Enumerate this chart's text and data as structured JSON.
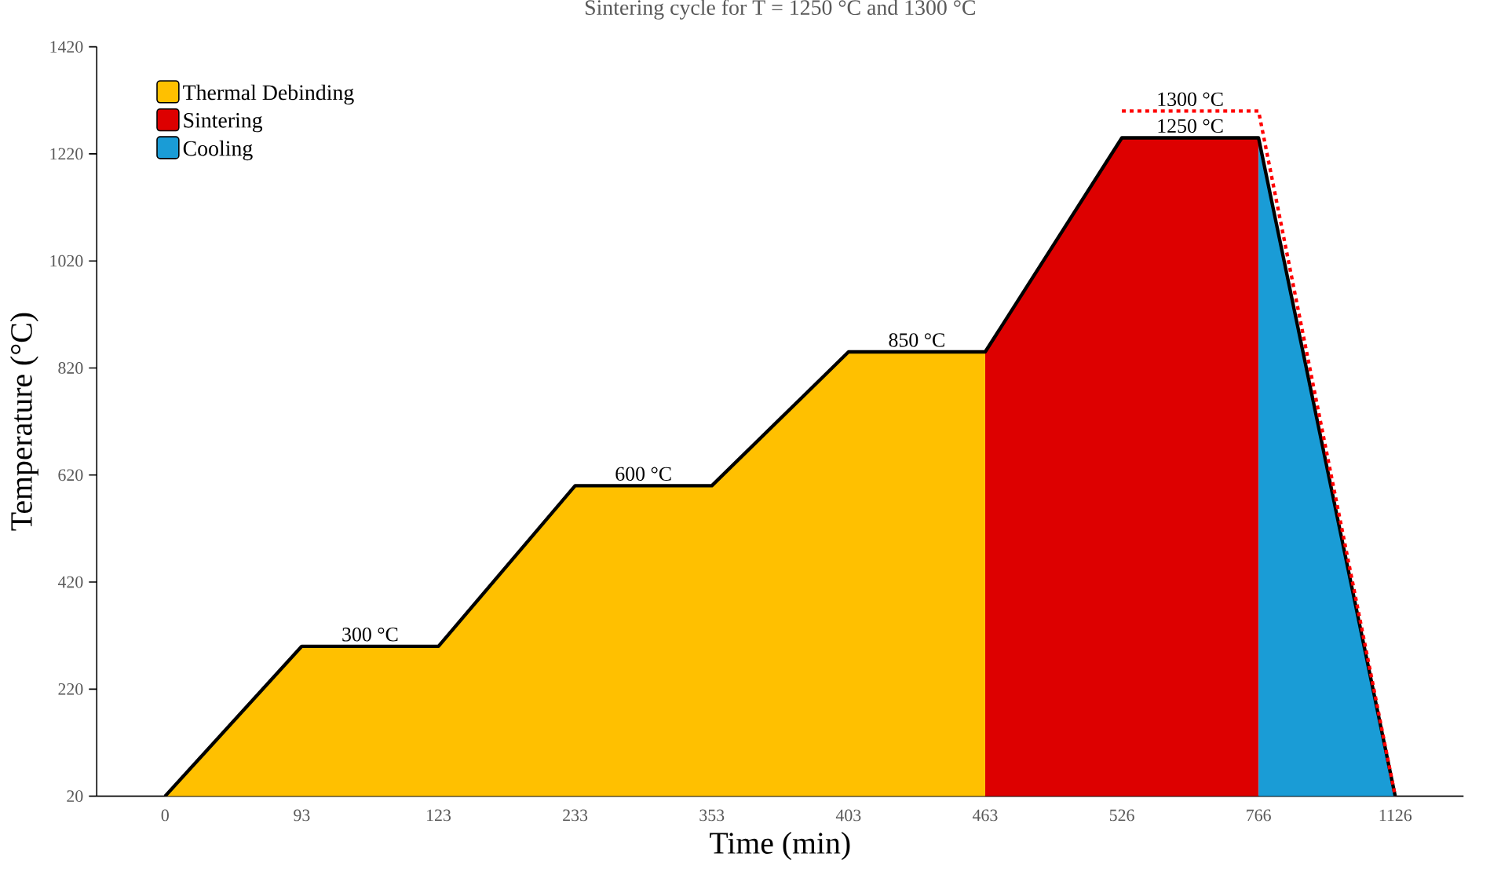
{
  "chart_data": {
    "type": "area",
    "title": "Sintering cycle for T = 1250 °C and 1300 °C",
    "xlabel": "Time (min)",
    "ylabel": "Temperature (°C)",
    "categories": [
      "0",
      "93",
      "123",
      "233",
      "353",
      "403",
      "463",
      "526",
      "766",
      "1126"
    ],
    "ylim": [
      20,
      1420
    ],
    "yticks": [
      20,
      220,
      420,
      620,
      820,
      1020,
      1220,
      1420
    ],
    "series": [
      {
        "name": "Thermal Debinding",
        "color": "#ffc000",
        "values": [
          20,
          300,
          300,
          600,
          600,
          850,
          850,
          null,
          null,
          null
        ]
      },
      {
        "name": "Sintering",
        "color": "#dd0000",
        "values": [
          null,
          null,
          null,
          null,
          null,
          null,
          850,
          1250,
          1250,
          null
        ]
      },
      {
        "name": "Cooling",
        "color": "#1a9cd6",
        "values": [
          null,
          null,
          null,
          null,
          null,
          null,
          null,
          null,
          1250,
          20
        ]
      },
      {
        "type": "line",
        "color": "#000000",
        "values": [
          20,
          300,
          300,
          600,
          600,
          850,
          850,
          1250,
          1250,
          20
        ]
      },
      {
        "type": "line",
        "color": "#ff0000",
        "line_style": "dotted",
        "values": [
          null,
          null,
          null,
          null,
          null,
          null,
          null,
          1300,
          1300,
          20
        ]
      }
    ],
    "annotations": [
      {
        "text": "300 °C",
        "x": "93",
        "y": 300
      },
      {
        "text": "600 °C",
        "x": "233",
        "y": 600
      },
      {
        "text": "850 °C",
        "x": "403",
        "y": 850
      },
      {
        "text": "1250 °C",
        "x": "526",
        "y": 1250
      },
      {
        "text": "1300 °C",
        "x": "526",
        "y": 1300
      }
    ],
    "legend": "top left",
    "grid": false
  }
}
